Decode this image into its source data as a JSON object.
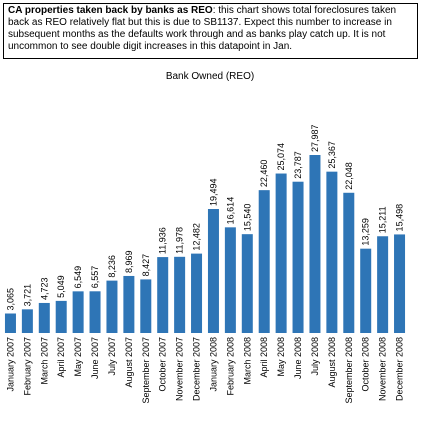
{
  "chart_data": {
    "type": "bar",
    "annotation": {
      "lead": "CA properties taken back by banks as REO",
      "text": ": this chart shows total foreclosures taken back as REO relatively flat but this is due to SB1137. Expect this number to increase in subsequent months as the defaults work through and as banks play catch up. It is not uncommon to see double digit increases in this datapoint in Jan."
    },
    "title": "Bank Owned (REO)",
    "categories": [
      "January 2007",
      "February 2007",
      "March 2007",
      "April 2007",
      "May 2007",
      "June 2007",
      "July 2007",
      "August 2007",
      "September 2007",
      "October 2007",
      "November 2007",
      "December 2007",
      "January 2008",
      "February 2008",
      "March 2008",
      "April 2008",
      "May 2008",
      "June 2008",
      "July 2008",
      "August 2008",
      "September 2008",
      "October 2008",
      "November 2008",
      "December 2008"
    ],
    "values": [
      3065,
      3721,
      4723,
      5049,
      6549,
      6557,
      8236,
      8969,
      8427,
      11936,
      11978,
      12482,
      19494,
      16614,
      15540,
      22460,
      25074,
      23787,
      27987,
      25367,
      22048,
      13259,
      15211,
      15498
    ],
    "value_labels": [
      "3,065",
      "3,721",
      "4,723",
      "5,049",
      "6,549",
      "6,557",
      "8,236",
      "8,969",
      "8,427",
      "11,936",
      "11,978",
      "12,482",
      "19,494",
      "16,614",
      "15,540",
      "22,460",
      "25,074",
      "23,787",
      "27,987",
      "25,367",
      "22,048",
      "13,259",
      "15,211",
      "15,498"
    ],
    "color": "#2e75b6"
  }
}
